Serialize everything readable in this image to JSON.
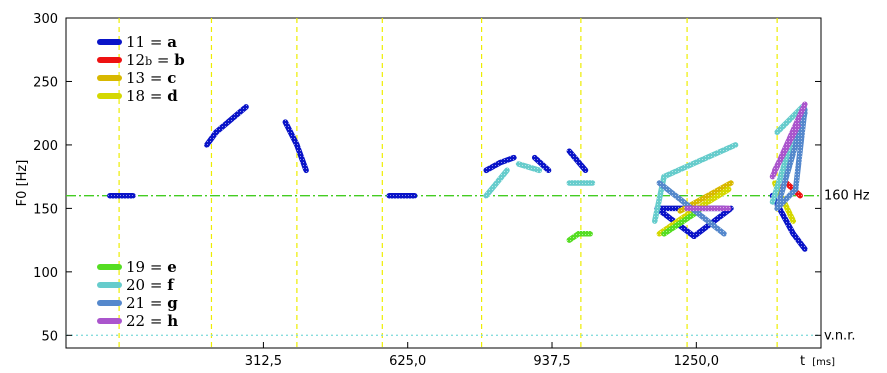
{
  "chart_data": {
    "type": "line",
    "title": "",
    "ylabel": "F0 [Hz]",
    "xlabel_main": "t",
    "xlabel_unit": "[ms]",
    "xlim": [
      -115,
      1520
    ],
    "ylim": [
      40,
      300
    ],
    "y_ticks": [
      50,
      100,
      150,
      200,
      250,
      300
    ],
    "x_ticks": [
      {
        "value": 312.5,
        "label": "312,5"
      },
      {
        "value": 625.0,
        "label": "625,0"
      },
      {
        "value": 937.5,
        "label": "937,5"
      },
      {
        "value": 1250.0,
        "label": "1250,0"
      }
    ],
    "vertical_gridlines_ms": [
      0,
      200,
      385,
      570,
      785,
      1000,
      1230,
      1425
    ],
    "reference_lines": [
      {
        "value": 160,
        "label": "160 Hz",
        "color": "#44cc22",
        "style": "dashdot"
      },
      {
        "value": 50,
        "label": "v.n.r.",
        "color": "#88dddd",
        "style": "dotted"
      }
    ],
    "legend_top": [
      {
        "num": "11",
        "sub": "",
        "letter": "a",
        "color": "#0a14c8"
      },
      {
        "num": "12",
        "sub": "b",
        "letter": "b",
        "color": "#ee1111"
      },
      {
        "num": "13",
        "sub": "",
        "letter": "c",
        "color": "#d8b800"
      },
      {
        "num": "18",
        "sub": "",
        "letter": "d",
        "color": "#d4d800"
      }
    ],
    "legend_bottom": [
      {
        "num": "19",
        "sub": "",
        "letter": "e",
        "color": "#55dd22"
      },
      {
        "num": "20",
        "sub": "",
        "letter": "f",
        "color": "#66cccc"
      },
      {
        "num": "21",
        "sub": "",
        "letter": "g",
        "color": "#5588cc"
      },
      {
        "num": "22",
        "sub": "",
        "letter": "h",
        "color": "#aa55cc"
      }
    ],
    "series": [
      {
        "key": "a",
        "color": "#0a14c8",
        "segments": [
          [
            [
              -20,
              160
            ],
            [
              30,
              160
            ]
          ],
          [
            [
              190,
              200
            ],
            [
              210,
              210
            ]
          ],
          [
            [
              210,
              210
            ],
            [
              275,
              230
            ]
          ],
          [
            [
              360,
              218
            ],
            [
              385,
              200
            ]
          ],
          [
            [
              385,
              200
            ],
            [
              405,
              180
            ]
          ],
          [
            [
              585,
              160
            ],
            [
              640,
              160
            ]
          ],
          [
            [
              795,
              180
            ],
            [
              825,
              186
            ]
          ],
          [
            [
              825,
              186
            ],
            [
              855,
              190
            ]
          ],
          [
            [
              900,
              190
            ],
            [
              930,
              180
            ]
          ],
          [
            [
              975,
              195
            ],
            [
              1010,
              180
            ]
          ],
          [
            [
              1165,
              150
            ],
            [
              1245,
              128
            ]
          ],
          [
            [
              1245,
              128
            ],
            [
              1325,
              150
            ]
          ],
          [
            [
              1165,
              150
            ],
            [
              1310,
              150
            ]
          ],
          [
            [
              1415,
              160
            ],
            [
              1460,
              130
            ]
          ],
          [
            [
              1460,
              130
            ],
            [
              1485,
              118
            ]
          ]
        ]
      },
      {
        "key": "b",
        "color": "#ee1111",
        "segments": [
          [
            [
              1425,
              163
            ],
            [
              1445,
              170
            ]
          ],
          [
            [
              1445,
              170
            ],
            [
              1475,
              160
            ]
          ]
        ]
      },
      {
        "key": "c",
        "color": "#d8b800",
        "segments": [
          [
            [
              1215,
              148
            ],
            [
              1265,
              158
            ]
          ],
          [
            [
              1265,
              158
            ],
            [
              1325,
              170
            ]
          ]
        ]
      },
      {
        "key": "d",
        "color": "#d4d800",
        "segments": [
          [
            [
              1170,
              130
            ],
            [
              1230,
              145
            ]
          ],
          [
            [
              1230,
              145
            ],
            [
              1320,
              165
            ]
          ],
          [
            [
              1420,
              170
            ],
            [
              1460,
              140
            ]
          ]
        ]
      },
      {
        "key": "e",
        "color": "#55dd22",
        "segments": [
          [
            [
              975,
              125
            ],
            [
              995,
              130
            ]
          ],
          [
            [
              995,
              130
            ],
            [
              1020,
              130
            ]
          ],
          [
            [
              1180,
              130
            ],
            [
              1255,
              148
            ]
          ]
        ]
      },
      {
        "key": "f",
        "color": "#66cccc",
        "segments": [
          [
            [
              795,
              160
            ],
            [
              840,
              180
            ]
          ],
          [
            [
              865,
              185
            ],
            [
              910,
              180
            ]
          ],
          [
            [
              975,
              170
            ],
            [
              1025,
              170
            ]
          ],
          [
            [
              1160,
              140
            ],
            [
              1180,
              175
            ]
          ],
          [
            [
              1180,
              175
            ],
            [
              1335,
              200
            ]
          ],
          [
            [
              1425,
              210
            ],
            [
              1480,
              230
            ]
          ],
          [
            [
              1415,
              155
            ],
            [
              1480,
              230
            ]
          ]
        ]
      },
      {
        "key": "g",
        "color": "#5588cc",
        "segments": [
          [
            [
              1170,
              170
            ],
            [
              1310,
              130
            ]
          ],
          [
            [
              1425,
              150
            ],
            [
              1465,
              165
            ]
          ],
          [
            [
              1465,
              165
            ],
            [
              1485,
              228
            ]
          ],
          [
            [
              1425,
              150
            ],
            [
              1485,
              225
            ]
          ]
        ]
      },
      {
        "key": "h",
        "color": "#aa55cc",
        "segments": [
          [
            [
              1230,
              150
            ],
            [
              1320,
              150
            ]
          ],
          [
            [
              1415,
              175
            ],
            [
              1485,
              232
            ]
          ],
          [
            [
              1420,
              180
            ],
            [
              1470,
              215
            ]
          ]
        ]
      }
    ]
  }
}
